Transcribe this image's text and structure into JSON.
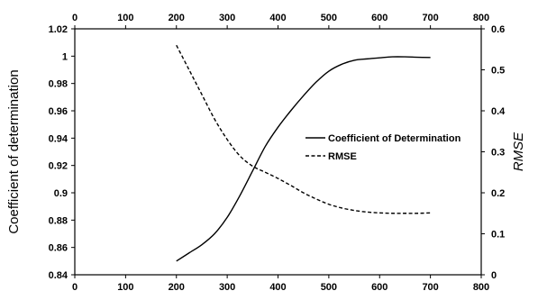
{
  "chart_data": {
    "type": "line",
    "x_axis": {
      "range": [
        0,
        800
      ],
      "ticks": [
        0,
        100,
        200,
        300,
        400,
        500,
        600,
        700,
        800
      ],
      "labels_top": true,
      "labels_bottom": true
    },
    "y_left": {
      "label": "Coefficient of determination",
      "range": [
        0.84,
        1.02
      ],
      "ticks": [
        0.84,
        0.86,
        0.88,
        0.9,
        0.92,
        0.94,
        0.96,
        0.98,
        1.0,
        1.02
      ],
      "tick_labels": [
        "0.84",
        "0.86",
        "0.88",
        "0.9",
        "0.92",
        "0.94",
        "0.96",
        "0.98",
        "1",
        "1.02"
      ]
    },
    "y_right": {
      "label": "RMSE",
      "range": [
        0,
        0.6
      ],
      "ticks": [
        0,
        0.1,
        0.2,
        0.3,
        0.4,
        0.5,
        0.6
      ],
      "tick_labels": [
        "0",
        "0.1",
        "0.2",
        "0.3",
        "0.4",
        "0.5",
        "0.6"
      ]
    },
    "grid": false,
    "legend_position": "right-middle",
    "series": [
      {
        "name": "Coefficient of Determination",
        "axis": "left",
        "style": "solid",
        "color": "#000000",
        "x": [
          200,
          225,
          250,
          275,
          300,
          325,
          350,
          375,
          400,
          425,
          450,
          475,
          500,
          525,
          550,
          575,
          600,
          625,
          650,
          675,
          700
        ],
        "y": [
          0.85,
          0.856,
          0.862,
          0.87,
          0.882,
          0.898,
          0.916,
          0.934,
          0.948,
          0.96,
          0.971,
          0.981,
          0.989,
          0.994,
          0.997,
          0.998,
          0.9988,
          0.9995,
          0.9995,
          0.9992,
          0.999
        ]
      },
      {
        "name": "RMSE",
        "axis": "right",
        "style": "dashed",
        "color": "#000000",
        "x": [
          200,
          225,
          250,
          275,
          300,
          325,
          350,
          375,
          400,
          425,
          450,
          475,
          500,
          525,
          550,
          575,
          600,
          625,
          650,
          675,
          700
        ],
        "y": [
          0.56,
          0.5,
          0.44,
          0.38,
          0.33,
          0.29,
          0.265,
          0.25,
          0.235,
          0.218,
          0.2,
          0.185,
          0.172,
          0.163,
          0.157,
          0.153,
          0.151,
          0.15,
          0.15,
          0.15,
          0.151
        ]
      }
    ]
  }
}
